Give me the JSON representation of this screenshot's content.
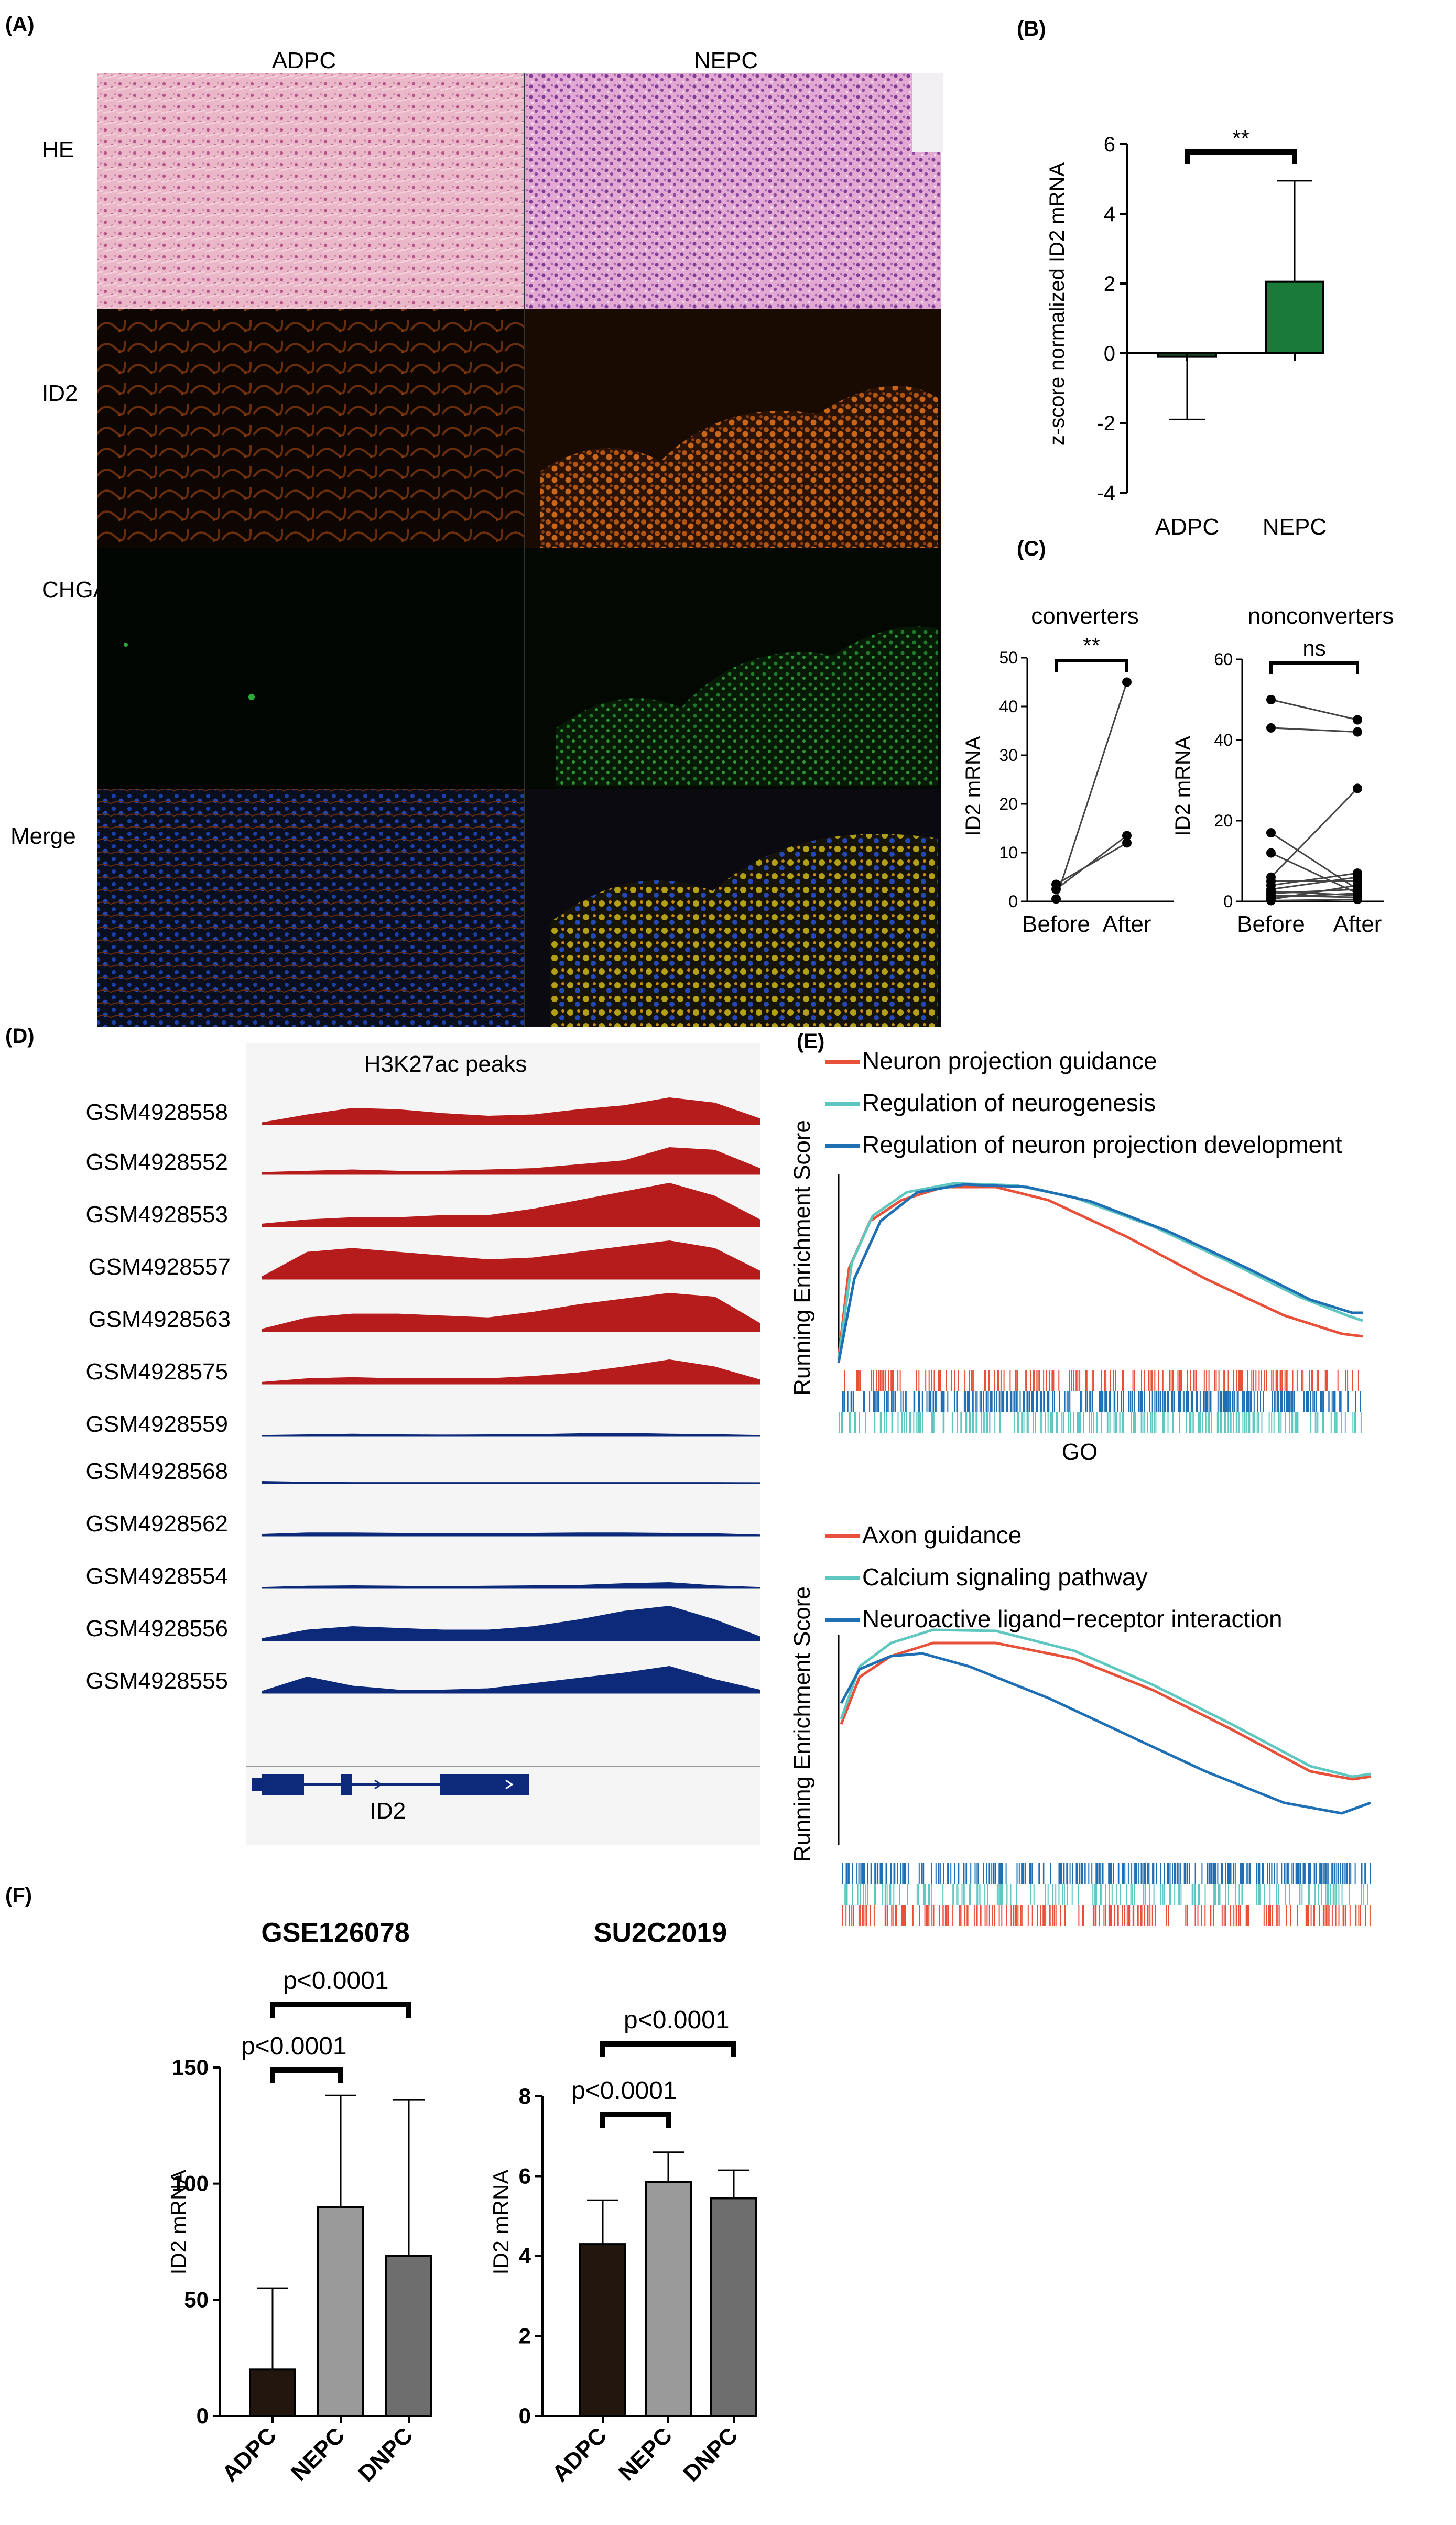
{
  "panel_labels": {
    "a": "(A)",
    "b": "(B)",
    "c": "(C)",
    "d": "(D)",
    "e": "(E)",
    "f": "(F)"
  },
  "panel_a": {
    "columns": [
      "ADPC",
      "NEPC"
    ],
    "rows": [
      "HE",
      "ID2",
      "CHGA",
      "Merge"
    ]
  },
  "panel_d": {
    "title": "H3K27ac peaks",
    "gene": "ID2",
    "tracks": [
      {
        "id": "GSM4928558",
        "color": "#b71c1c"
      },
      {
        "id": "GSM4928552",
        "color": "#b71c1c"
      },
      {
        "id": "GSM4928553",
        "color": "#b71c1c"
      },
      {
        "id": "GSM4928557",
        "color": "#b71c1c"
      },
      {
        "id": "GSM4928563",
        "color": "#b71c1c"
      },
      {
        "id": "GSM4928575",
        "color": "#b71c1c"
      },
      {
        "id": "GSM4928559",
        "color": "#0d2a7a"
      },
      {
        "id": "GSM4928568",
        "color": "#0d2a7a"
      },
      {
        "id": "GSM4928562",
        "color": "#0d2a7a"
      },
      {
        "id": "GSM4928554",
        "color": "#0d2a7a"
      },
      {
        "id": "GSM4928556",
        "color": "#0d2a7a"
      },
      {
        "id": "GSM4928555",
        "color": "#0d2a7a"
      }
    ]
  },
  "panel_e": {
    "ylabel": "Running Enrichment Score",
    "go_label": "GO",
    "go_legend": [
      {
        "name": "Neuron projection guidance",
        "color": "#e8503a"
      },
      {
        "name": "Regulation of neurogenesis",
        "color": "#5ec8c0"
      },
      {
        "name": "Regulation of neuron projection development",
        "color": "#1f6fb5"
      }
    ],
    "kegg_legend": [
      {
        "name": "Axon guidance",
        "color": "#e8503a"
      },
      {
        "name": "Calcium signaling pathway",
        "color": "#5ec8c0"
      },
      {
        "name": "Neuroactive ligand−receptor interaction",
        "color": "#1f6fb5"
      }
    ]
  },
  "chart_data": [
    {
      "id": "B",
      "type": "bar",
      "categories": [
        "ADPC",
        "NEPC"
      ],
      "values": [
        -0.1,
        2.05
      ],
      "errors": [
        1.8,
        2.9
      ],
      "colors": [
        "#1a4d2e",
        "#1a7a3a"
      ],
      "ylabel": "z-score normalized ID2 mRNA",
      "ylim": [
        -4,
        6
      ],
      "yticks": [
        "-4",
        "-2",
        "0",
        "2",
        "4",
        "6"
      ],
      "significance": "**"
    },
    {
      "id": "C1",
      "type": "scatter",
      "title": "converters",
      "categories": [
        "Before",
        "After"
      ],
      "ylabel": "ID2 mRNA",
      "ylim": [
        0,
        50
      ],
      "yticks": [
        "0",
        "10",
        "20",
        "30",
        "40",
        "50"
      ],
      "pairs": [
        [
          0.5,
          45
        ],
        [
          2.5,
          13.5
        ],
        [
          3.5,
          12
        ]
      ],
      "significance": "**"
    },
    {
      "id": "C2",
      "type": "scatter",
      "title": "nonconverters",
      "categories": [
        "Before",
        "After"
      ],
      "ylabel": "ID2 mRNA",
      "ylim": [
        0,
        60
      ],
      "yticks": [
        "0",
        "20",
        "40",
        "60"
      ],
      "pairs": [
        [
          50,
          45
        ],
        [
          43,
          42
        ],
        [
          17,
          3
        ],
        [
          12,
          2
        ],
        [
          6,
          28
        ],
        [
          5,
          5
        ],
        [
          4,
          7
        ],
        [
          3,
          6
        ],
        [
          2,
          3
        ],
        [
          1.5,
          1
        ],
        [
          1,
          2
        ],
        [
          0.5,
          4
        ],
        [
          0.2,
          0.5
        ],
        [
          2.5,
          1.5
        ]
      ],
      "significance": "ns"
    },
    {
      "id": "F1",
      "type": "bar",
      "title": "GSE126078",
      "categories": [
        "ADPC",
        "NEPC",
        "DNPC"
      ],
      "values": [
        20,
        90,
        69
      ],
      "errors": [
        35,
        48,
        67
      ],
      "colors": [
        "#22160f",
        "#9a9a9a",
        "#6e6e6e"
      ],
      "ylabel": "ID2 mRNA",
      "ylim": [
        0,
        150
      ],
      "yticks": [
        "0",
        "50",
        "100",
        "150"
      ],
      "comparisons": [
        {
          "from": 0,
          "to": 1,
          "label": "p<0.0001"
        },
        {
          "from": 0,
          "to": 2,
          "label": "p<0.0001"
        }
      ]
    },
    {
      "id": "F2",
      "type": "bar",
      "title": "SU2C2019",
      "categories": [
        "ADPC",
        "NEPC",
        "DNPC"
      ],
      "values": [
        4.3,
        5.85,
        5.45
      ],
      "errors": [
        1.1,
        0.75,
        0.7
      ],
      "colors": [
        "#22160f",
        "#9a9a9a",
        "#6e6e6e"
      ],
      "ylabel": "ID2 mRNA",
      "ylim": [
        0,
        8
      ],
      "yticks": [
        "0",
        "2",
        "4",
        "6",
        "8"
      ],
      "comparisons": [
        {
          "from": 0,
          "to": 1,
          "label": "p<0.0001"
        },
        {
          "from": 0,
          "to": 2,
          "label": "p<0.0001"
        }
      ]
    }
  ]
}
